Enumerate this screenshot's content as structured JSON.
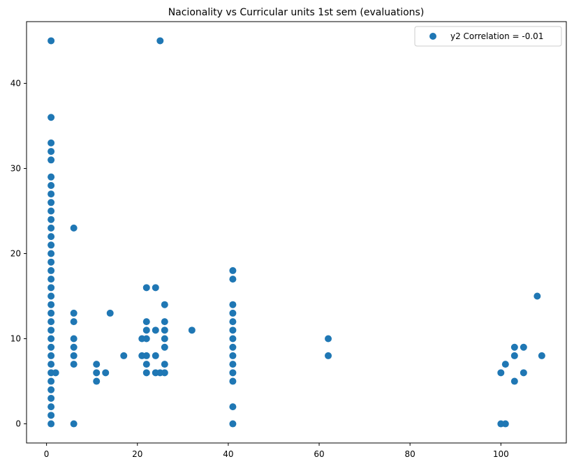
{
  "chart_data": {
    "type": "scatter",
    "title": "Nacionality vs Curricular units 1st sem (evaluations)",
    "xlabel": "",
    "ylabel": "",
    "xlim": [
      -4.4,
      114.4
    ],
    "ylim": [
      -2.25,
      47.25
    ],
    "x_ticks": [
      0,
      20,
      40,
      60,
      80,
      100
    ],
    "y_ticks": [
      0,
      10,
      20,
      30,
      40
    ],
    "grid": false,
    "legend": {
      "placement": "top-right",
      "entries": [
        "y2 Correlation = -0.01"
      ]
    },
    "series": [
      {
        "name": "y2 Correlation = -0.01",
        "color": "#1f77b4",
        "points": [
          [
            1,
            0
          ],
          [
            1,
            1
          ],
          [
            1,
            2
          ],
          [
            1,
            3
          ],
          [
            1,
            4
          ],
          [
            1,
            5
          ],
          [
            1,
            6
          ],
          [
            1,
            7
          ],
          [
            1,
            8
          ],
          [
            1,
            9
          ],
          [
            1,
            10
          ],
          [
            1,
            11
          ],
          [
            1,
            12
          ],
          [
            1,
            13
          ],
          [
            1,
            14
          ],
          [
            1,
            15
          ],
          [
            1,
            16
          ],
          [
            1,
            17
          ],
          [
            1,
            18
          ],
          [
            1,
            19
          ],
          [
            1,
            20
          ],
          [
            1,
            21
          ],
          [
            1,
            22
          ],
          [
            1,
            23
          ],
          [
            1,
            24
          ],
          [
            1,
            25
          ],
          [
            1,
            26
          ],
          [
            1,
            27
          ],
          [
            1,
            28
          ],
          [
            1,
            29
          ],
          [
            1,
            31
          ],
          [
            1,
            32
          ],
          [
            1,
            33
          ],
          [
            1,
            36
          ],
          [
            1,
            45
          ],
          [
            2,
            6
          ],
          [
            6,
            0
          ],
          [
            6,
            7
          ],
          [
            6,
            8
          ],
          [
            6,
            9
          ],
          [
            6,
            10
          ],
          [
            6,
            12
          ],
          [
            6,
            13
          ],
          [
            6,
            23
          ],
          [
            11,
            5
          ],
          [
            11,
            6
          ],
          [
            11,
            7
          ],
          [
            13,
            6
          ],
          [
            14,
            13
          ],
          [
            17,
            8
          ],
          [
            21,
            8
          ],
          [
            21,
            10
          ],
          [
            22,
            6
          ],
          [
            22,
            7
          ],
          [
            22,
            8
          ],
          [
            22,
            10
          ],
          [
            22,
            11
          ],
          [
            22,
            12
          ],
          [
            22,
            16
          ],
          [
            24,
            6
          ],
          [
            24,
            8
          ],
          [
            24,
            11
          ],
          [
            24,
            16
          ],
          [
            25,
            6
          ],
          [
            25,
            45
          ],
          [
            26,
            6
          ],
          [
            26,
            7
          ],
          [
            26,
            9
          ],
          [
            26,
            10
          ],
          [
            26,
            11
          ],
          [
            26,
            12
          ],
          [
            26,
            14
          ],
          [
            32,
            11
          ],
          [
            41,
            0
          ],
          [
            41,
            2
          ],
          [
            41,
            5
          ],
          [
            41,
            6
          ],
          [
            41,
            7
          ],
          [
            41,
            8
          ],
          [
            41,
            9
          ],
          [
            41,
            10
          ],
          [
            41,
            11
          ],
          [
            41,
            12
          ],
          [
            41,
            13
          ],
          [
            41,
            14
          ],
          [
            41,
            17
          ],
          [
            41,
            18
          ],
          [
            62,
            8
          ],
          [
            62,
            10
          ],
          [
            100,
            6
          ],
          [
            100,
            0
          ],
          [
            101,
            0
          ],
          [
            101,
            7
          ],
          [
            103,
            5
          ],
          [
            103,
            8
          ],
          [
            103,
            9
          ],
          [
            105,
            6
          ],
          [
            105,
            9
          ],
          [
            108,
            15
          ],
          [
            109,
            8
          ]
        ]
      }
    ]
  }
}
